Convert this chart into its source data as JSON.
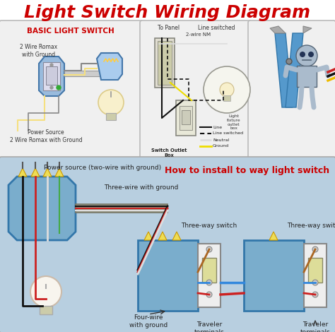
{
  "title": "Light Switch Wiring Diagram",
  "title_color": "#cc0000",
  "title_fontsize": 18,
  "bg_color": "#ffffff",
  "panel1_title": "BASIC LIGHT SWITCH",
  "panel1_title_color": "#cc0000",
  "panel1_bg": "#f0f0f0",
  "panel2_bg": "#f0f0f0",
  "panel3_bg": "#f0f0f0",
  "bottom_bg": "#b8cfe0",
  "panel2_label_top": "To Panel",
  "panel2_label_line": "Line switched",
  "panel2_label_nm": "2-wire NM",
  "panel2_label_box": "Switch Outlet\nBox",
  "panel2_label_fixture": "Light\nfixture\noutlet\nbox",
  "legend_line": "Line",
  "legend_dashed": "Line switched",
  "legend_neutral": "Neutral",
  "legend_ground": "Ground",
  "bottom_label1": "Power source (two-wire with ground)",
  "bottom_label2": "Three-wire with ground",
  "bottom_label3": "Three-way switch",
  "bottom_label4": "Three-way switch",
  "bottom_label5": "Four-wire\nwith ground",
  "bottom_label6": "Traveler\nterminals",
  "bottom_label7": "Traveler\nterminals",
  "bottom_title": "How to install to way light switch",
  "bottom_title_color": "#cc0000",
  "wire_label1": "2 Wire Romax\nwith Ground",
  "wire_label2": "Power Source\n2 Wire Romax with Ground"
}
